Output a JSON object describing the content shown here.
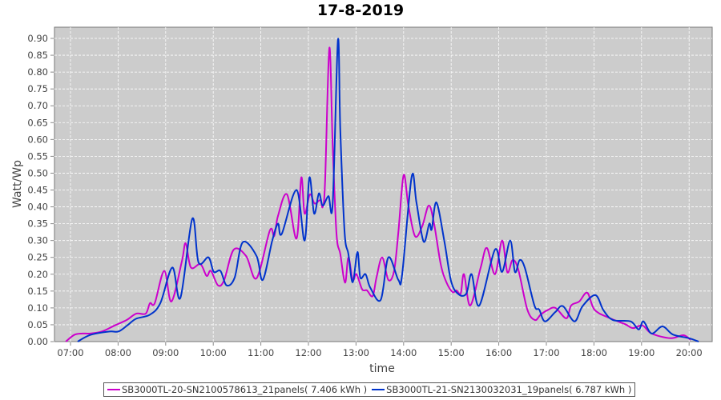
{
  "chart_data": {
    "type": "line",
    "title": "17-8-2019",
    "xlabel": "time",
    "ylabel": "Watt/Wp",
    "xlim": [
      6.67,
      20.5
    ],
    "ylim": [
      0,
      0.93
    ],
    "grid": true,
    "legend_position": "bottom",
    "x_ticks": [
      "07:00",
      "08:00",
      "09:00",
      "10:00",
      "11:00",
      "12:00",
      "13:00",
      "14:00",
      "15:00",
      "16:00",
      "17:00",
      "18:00",
      "19:00",
      "20:00"
    ],
    "y_ticks": [
      "0.00",
      "0.05",
      "0.10",
      "0.15",
      "0.20",
      "0.25",
      "0.30",
      "0.35",
      "0.40",
      "0.45",
      "0.50",
      "0.55",
      "0.60",
      "0.65",
      "0.70",
      "0.75",
      "0.80",
      "0.85",
      "0.90"
    ],
    "series": [
      {
        "name": "SB3000TL-20-SN2100578613_21panels( 7.406 kWh )",
        "color": "#cc00cc",
        "points": [
          [
            6.9,
            0
          ],
          [
            7.08,
            0.02
          ],
          [
            7.25,
            0.024
          ],
          [
            7.42,
            0.024
          ],
          [
            7.66,
            0.03
          ],
          [
            7.93,
            0.048
          ],
          [
            8.18,
            0.064
          ],
          [
            8.38,
            0.083
          ],
          [
            8.58,
            0.083
          ],
          [
            8.67,
            0.114
          ],
          [
            8.77,
            0.114
          ],
          [
            8.97,
            0.21
          ],
          [
            9.12,
            0.119
          ],
          [
            9.34,
            0.238
          ],
          [
            9.42,
            0.292
          ],
          [
            9.53,
            0.22
          ],
          [
            9.73,
            0.23
          ],
          [
            9.86,
            0.195
          ],
          [
            9.95,
            0.21
          ],
          [
            10.1,
            0.167
          ],
          [
            10.23,
            0.183
          ],
          [
            10.43,
            0.273
          ],
          [
            10.69,
            0.254
          ],
          [
            10.91,
            0.188
          ],
          [
            11.19,
            0.33
          ],
          [
            11.28,
            0.313
          ],
          [
            11.36,
            0.373
          ],
          [
            11.55,
            0.437
          ],
          [
            11.75,
            0.306
          ],
          [
            11.85,
            0.487
          ],
          [
            11.92,
            0.38
          ],
          [
            12.03,
            0.437
          ],
          [
            12.13,
            0.41
          ],
          [
            12.25,
            0.42
          ],
          [
            12.3,
            0.4
          ],
          [
            12.35,
            0.475
          ],
          [
            12.44,
            0.872
          ],
          [
            12.51,
            0.58
          ],
          [
            12.59,
            0.32
          ],
          [
            12.67,
            0.26
          ],
          [
            12.77,
            0.175
          ],
          [
            12.84,
            0.25
          ],
          [
            12.93,
            0.183
          ],
          [
            13.01,
            0.2
          ],
          [
            13.13,
            0.155
          ],
          [
            13.23,
            0.152
          ],
          [
            13.35,
            0.135
          ],
          [
            13.43,
            0.19
          ],
          [
            13.55,
            0.25
          ],
          [
            13.68,
            0.183
          ],
          [
            13.8,
            0.21
          ],
          [
            13.89,
            0.325
          ],
          [
            14.0,
            0.494
          ],
          [
            14.1,
            0.404
          ],
          [
            14.24,
            0.313
          ],
          [
            14.39,
            0.342
          ],
          [
            14.53,
            0.404
          ],
          [
            14.64,
            0.35
          ],
          [
            14.78,
            0.23
          ],
          [
            14.9,
            0.176
          ],
          [
            15.03,
            0.147
          ],
          [
            15.11,
            0.152
          ],
          [
            15.2,
            0.143
          ],
          [
            15.27,
            0.2
          ],
          [
            15.4,
            0.107
          ],
          [
            15.62,
            0.22
          ],
          [
            15.75,
            0.278
          ],
          [
            15.92,
            0.2
          ],
          [
            16.07,
            0.3
          ],
          [
            16.18,
            0.206
          ],
          [
            16.29,
            0.242
          ],
          [
            16.41,
            0.214
          ],
          [
            16.6,
            0.095
          ],
          [
            16.76,
            0.064
          ],
          [
            16.88,
            0.08
          ],
          [
            17.02,
            0.093
          ],
          [
            17.19,
            0.1
          ],
          [
            17.42,
            0.069
          ],
          [
            17.52,
            0.107
          ],
          [
            17.69,
            0.119
          ],
          [
            17.86,
            0.145
          ],
          [
            18.01,
            0.095
          ],
          [
            18.31,
            0.071
          ],
          [
            18.65,
            0.052
          ],
          [
            18.82,
            0.04
          ],
          [
            19.02,
            0.048
          ],
          [
            19.21,
            0.024
          ],
          [
            19.61,
            0.01
          ],
          [
            19.88,
            0.019
          ],
          [
            20.03,
            0.005
          ]
        ]
      },
      {
        "name": "SB3000TL-21-SN2130032031_19panels( 6.787 kWh )",
        "color": "#0033cc",
        "points": [
          [
            7.15,
            0
          ],
          [
            7.42,
            0.02
          ],
          [
            7.82,
            0.03
          ],
          [
            8.01,
            0.03
          ],
          [
            8.21,
            0.05
          ],
          [
            8.38,
            0.068
          ],
          [
            8.67,
            0.08
          ],
          [
            8.89,
            0.115
          ],
          [
            9.14,
            0.22
          ],
          [
            9.31,
            0.13
          ],
          [
            9.56,
            0.365
          ],
          [
            9.69,
            0.235
          ],
          [
            9.9,
            0.25
          ],
          [
            10.01,
            0.207
          ],
          [
            10.15,
            0.21
          ],
          [
            10.28,
            0.167
          ],
          [
            10.45,
            0.19
          ],
          [
            10.62,
            0.295
          ],
          [
            10.91,
            0.254
          ],
          [
            11.04,
            0.183
          ],
          [
            11.24,
            0.3
          ],
          [
            11.36,
            0.35
          ],
          [
            11.44,
            0.32
          ],
          [
            11.75,
            0.45
          ],
          [
            11.92,
            0.3
          ],
          [
            12.02,
            0.487
          ],
          [
            12.12,
            0.38
          ],
          [
            12.22,
            0.44
          ],
          [
            12.3,
            0.404
          ],
          [
            12.42,
            0.432
          ],
          [
            12.51,
            0.41
          ],
          [
            12.62,
            0.895
          ],
          [
            12.67,
            0.627
          ],
          [
            12.76,
            0.325
          ],
          [
            12.84,
            0.26
          ],
          [
            12.93,
            0.176
          ],
          [
            13.03,
            0.266
          ],
          [
            13.09,
            0.19
          ],
          [
            13.2,
            0.2
          ],
          [
            13.3,
            0.16
          ],
          [
            13.52,
            0.124
          ],
          [
            13.68,
            0.25
          ],
          [
            13.89,
            0.183
          ],
          [
            13.97,
            0.2
          ],
          [
            14.17,
            0.49
          ],
          [
            14.27,
            0.413
          ],
          [
            14.42,
            0.297
          ],
          [
            14.54,
            0.35
          ],
          [
            14.59,
            0.333
          ],
          [
            14.69,
            0.413
          ],
          [
            14.86,
            0.295
          ],
          [
            15.0,
            0.178
          ],
          [
            15.16,
            0.14
          ],
          [
            15.32,
            0.143
          ],
          [
            15.43,
            0.2
          ],
          [
            15.59,
            0.107
          ],
          [
            15.92,
            0.273
          ],
          [
            16.07,
            0.207
          ],
          [
            16.24,
            0.3
          ],
          [
            16.34,
            0.207
          ],
          [
            16.44,
            0.242
          ],
          [
            16.55,
            0.218
          ],
          [
            16.75,
            0.107
          ],
          [
            16.85,
            0.095
          ],
          [
            16.97,
            0.06
          ],
          [
            17.19,
            0.088
          ],
          [
            17.35,
            0.105
          ],
          [
            17.59,
            0.06
          ],
          [
            17.76,
            0.105
          ],
          [
            18.03,
            0.138
          ],
          [
            18.2,
            0.093
          ],
          [
            18.4,
            0.064
          ],
          [
            18.77,
            0.06
          ],
          [
            18.94,
            0.036
          ],
          [
            19.04,
            0.06
          ],
          [
            19.21,
            0.024
          ],
          [
            19.44,
            0.045
          ],
          [
            19.66,
            0.021
          ],
          [
            20.0,
            0.01
          ],
          [
            20.2,
            0
          ]
        ]
      }
    ]
  }
}
